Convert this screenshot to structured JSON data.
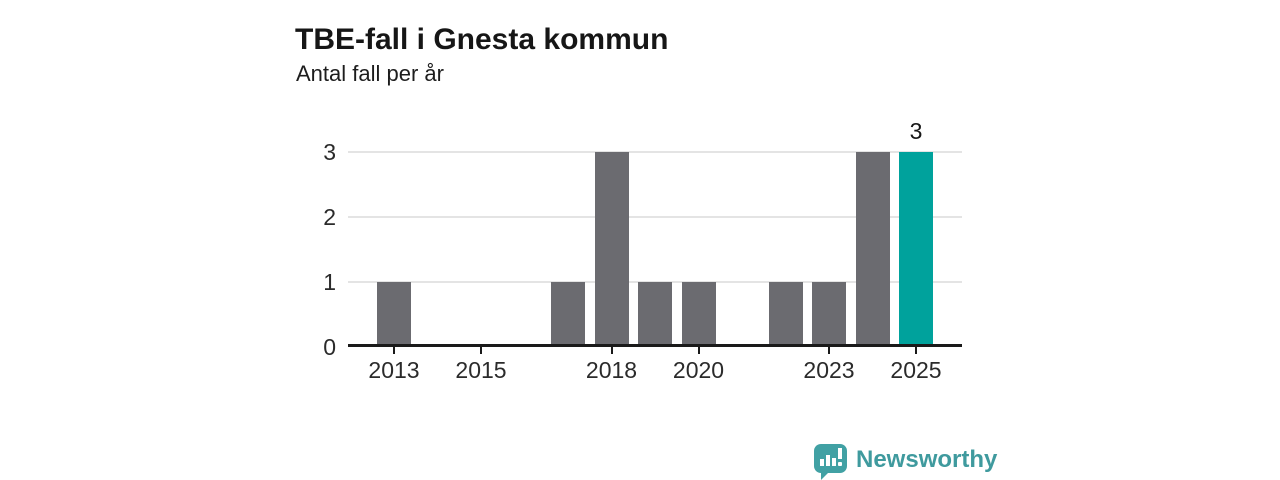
{
  "header": {
    "title": "TBE-fall i Gnesta kommun",
    "subtitle": "Antal fall per år"
  },
  "chart_data": {
    "type": "bar",
    "title": "TBE-fall i Gnesta kommun",
    "subtitle": "Antal fall per år",
    "xlabel": "",
    "ylabel": "Antal fall per år",
    "categories": [
      2013,
      2014,
      2015,
      2016,
      2017,
      2018,
      2019,
      2020,
      2021,
      2022,
      2023,
      2024,
      2025
    ],
    "values": [
      1,
      0,
      0,
      0,
      1,
      3,
      1,
      1,
      0,
      1,
      1,
      3,
      3
    ],
    "ylim": [
      0,
      3
    ],
    "xlim": [
      2012,
      2026
    ],
    "yticks": [
      0,
      1,
      2,
      3
    ],
    "xticks": [
      2013,
      2015,
      2018,
      2020,
      2023,
      2025
    ],
    "grid": "horizontal-only",
    "legend": "none",
    "bar_color": "#6b6b70",
    "gridline_color": "#e4e4e4",
    "axis_color": "#1a1a1a",
    "highlight": {
      "category": 2025,
      "color": "#00a29c",
      "data_label": "3"
    }
  },
  "footer": {
    "brand": "Newsworthy",
    "brand_color": "#3f9a9e",
    "icon_color": "#41a1a4",
    "icon": "newsworthy-speech-bubble-chart-icon"
  }
}
